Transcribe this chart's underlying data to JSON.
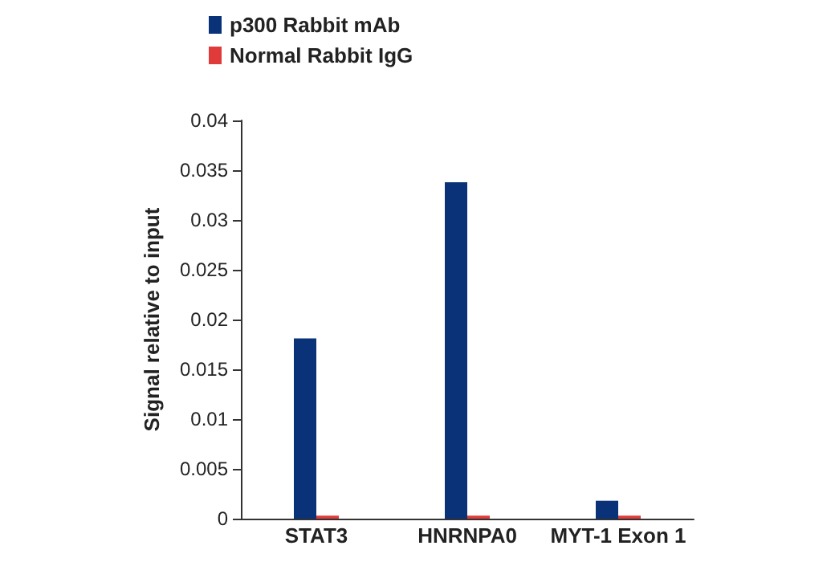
{
  "chart_data": {
    "type": "bar",
    "ylabel": "Signal relative to input",
    "categories": [
      "STAT3",
      "HNRNPA0",
      "MYT-1 Exon 1"
    ],
    "series": [
      {
        "name": "p300 Rabbit mAb",
        "color": "#0a3278",
        "values": [
          0.0181,
          0.0338,
          0.0018
        ]
      },
      {
        "name": "Normal Rabbit IgG",
        "color": "#e03a3a",
        "values": [
          0.0003,
          0.0003,
          0.0003
        ]
      }
    ],
    "ylim": [
      0,
      0.04
    ],
    "yticks": [
      0,
      0.005,
      0.01,
      0.015,
      0.02,
      0.025,
      0.03,
      0.035,
      0.04
    ],
    "grid": false,
    "legend": "top left"
  }
}
